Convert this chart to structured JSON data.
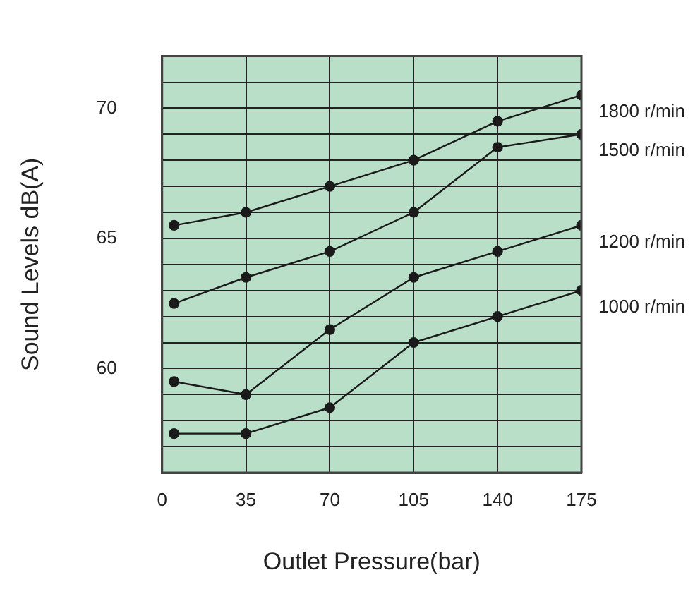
{
  "chart_data": {
    "type": "line",
    "xlabel": "Outlet Pressure(bar)",
    "ylabel": "Sound Levels dB(A)",
    "x": [
      5,
      35,
      70,
      105,
      140,
      175
    ],
    "series": [
      {
        "name": "1800 r/min",
        "color": "#1a1a1a",
        "values": [
          65.5,
          66,
          67,
          68,
          69.5,
          70.5
        ]
      },
      {
        "name": "1500 r/min",
        "color": "#1a1a1a",
        "values": [
          62.5,
          63.5,
          64.5,
          66,
          68.5,
          69
        ]
      },
      {
        "name": "1200 r/min",
        "color": "#1a1a1a",
        "values": [
          59.5,
          59,
          61.5,
          63.5,
          64.5,
          65.5
        ]
      },
      {
        "name": "1000 r/min",
        "color": "#1a1a1a",
        "values": [
          57.5,
          57.5,
          58.5,
          61,
          62,
          63
        ]
      }
    ],
    "xlim": [
      0,
      175
    ],
    "xticks": [
      0,
      35,
      70,
      105,
      140,
      175
    ],
    "ylim": [
      56,
      72
    ],
    "yticks": [
      {
        "value": 57,
        "label": null
      },
      {
        "value": 58,
        "label": null
      },
      {
        "value": 59,
        "label": null
      },
      60,
      {
        "value": 61,
        "label": null
      },
      {
        "value": 62,
        "label": null
      },
      {
        "value": 63,
        "label": null
      },
      {
        "value": 64,
        "label": null
      },
      65,
      {
        "value": 66,
        "label": null
      },
      {
        "value": 67,
        "label": null
      },
      {
        "value": 68,
        "label": null
      },
      {
        "value": 69,
        "label": null
      },
      70,
      {
        "value": 71,
        "label": null
      }
    ],
    "grid": true,
    "legend": false,
    "marker": "circle",
    "line_style": "solid"
  }
}
